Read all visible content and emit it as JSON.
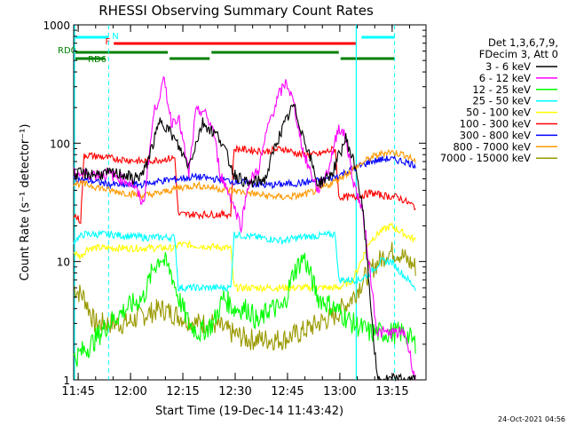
{
  "chart_data": {
    "type": "line",
    "title": "RHESSI Observing Summary Count Rates",
    "xlabel": "Start Time (19-Dec-14 11:43:42)",
    "ylabel": "Count Rate (s⁻¹ detector⁻¹)",
    "yscale": "log",
    "ylim": [
      1,
      1000
    ],
    "xlim_minutes": [
      0,
      101
    ],
    "y_ticks": [
      {
        "value": 1,
        "label": "1"
      },
      {
        "value": 10,
        "label": "10"
      },
      {
        "value": 100,
        "label": "100"
      },
      {
        "value": 1000,
        "label": "1000"
      }
    ],
    "x_ticks": [
      "11:45",
      "12:00",
      "12:15",
      "12:30",
      "12:45",
      "13:00",
      "13:15"
    ],
    "legend_position": "right",
    "legend_header": [
      "Det 1,3,6,7,9,",
      "FDecim 3, Att 0"
    ],
    "series": [
      {
        "name": "3 - 6 keV",
        "color": "#000000",
        "x": [
          10,
          14,
          17,
          20,
          25,
          28,
          33,
          37,
          42,
          46,
          50,
          55,
          58,
          63,
          67,
          70,
          74,
          78,
          81,
          83,
          87,
          91,
          95,
          98
        ],
        "values": [
          55,
          55,
          50,
          55,
          160,
          120,
          65,
          150,
          110,
          55,
          45,
          50,
          100,
          210,
          90,
          45,
          55,
          110,
          60,
          25,
          1,
          1,
          1,
          1
        ]
      },
      {
        "name": "6 - 12 keV",
        "color": "#ff00ff",
        "x": [
          10,
          14,
          17,
          20,
          23,
          26,
          28,
          30,
          33,
          35,
          37,
          40,
          42,
          45,
          48,
          50,
          53,
          56,
          59,
          61,
          63,
          66,
          70,
          73,
          76,
          78,
          80,
          83,
          87,
          90,
          95,
          98
        ],
        "values": [
          55,
          50,
          45,
          30,
          180,
          340,
          150,
          170,
          55,
          180,
          190,
          130,
          55,
          35,
          20,
          45,
          60,
          150,
          260,
          330,
          220,
          80,
          40,
          60,
          140,
          110,
          50,
          25,
          2.5,
          2.5,
          2.5,
          1
        ]
      },
      {
        "name": "12 - 25 keV",
        "color": "#00ff00",
        "x": [
          0,
          5,
          10,
          15,
          20,
          23,
          25,
          28,
          30,
          33,
          36,
          40,
          43,
          46,
          50,
          53,
          56,
          60,
          63,
          66,
          70,
          75,
          80,
          85,
          90,
          95,
          98
        ],
        "values": [
          1.5,
          2,
          3,
          4,
          5,
          9,
          11,
          8,
          5,
          3,
          2.5,
          3,
          5,
          4,
          4,
          3,
          4,
          4,
          8,
          11,
          5,
          4,
          3,
          2.5,
          2.5,
          2.5,
          2
        ]
      },
      {
        "name": "25 - 50 keV",
        "color": "#00ffff",
        "x": [
          0,
          3,
          10,
          20,
          29,
          30,
          45,
          46,
          60,
          65,
          75,
          76,
          82,
          85,
          88,
          91,
          94,
          98
        ],
        "values": [
          15,
          17,
          17,
          16,
          16,
          6,
          6,
          17,
          15,
          16,
          17,
          7,
          7,
          8,
          10,
          10,
          8,
          6
        ]
      },
      {
        "name": "50 - 100 keV",
        "color": "#ffff00",
        "x": [
          0,
          2,
          4,
          10,
          20,
          29,
          30,
          45,
          46,
          55,
          60,
          68,
          76,
          80,
          85,
          88,
          91,
          95,
          98
        ],
        "values": [
          12,
          11,
          13,
          13,
          13,
          13,
          14,
          13,
          6,
          6,
          6,
          6,
          6,
          7,
          15,
          18,
          20,
          17,
          15
        ]
      },
      {
        "name": "100 - 300 keV",
        "color": "#ff0000",
        "x": [
          0,
          2,
          3,
          10,
          20,
          29,
          30,
          45,
          46,
          55,
          60,
          65,
          70,
          75,
          76,
          78,
          81,
          85,
          89,
          93,
          97,
          98
        ],
        "values": [
          25,
          22,
          80,
          75,
          70,
          75,
          25,
          25,
          90,
          85,
          90,
          80,
          80,
          90,
          35,
          35,
          35,
          38,
          36,
          35,
          30,
          29
        ]
      },
      {
        "name": "300 - 800 keV",
        "color": "#0000ff",
        "x": [
          0,
          5,
          10,
          15,
          20,
          25,
          30,
          35,
          40,
          45,
          50,
          55,
          60,
          65,
          70,
          75,
          80,
          85,
          90,
          95,
          98
        ],
        "values": [
          50,
          48,
          45,
          44,
          45,
          48,
          50,
          52,
          50,
          48,
          46,
          44,
          45,
          46,
          48,
          52,
          60,
          70,
          74,
          70,
          65
        ]
      },
      {
        "name": "800 - 7000 keV",
        "color": "#ff9900",
        "x": [
          0,
          5,
          10,
          15,
          20,
          25,
          30,
          35,
          40,
          45,
          50,
          55,
          60,
          65,
          70,
          75,
          80,
          85,
          90,
          95,
          98
        ],
        "values": [
          46,
          44,
          40,
          38,
          36,
          38,
          42,
          44,
          42,
          40,
          38,
          36,
          35,
          36,
          40,
          48,
          60,
          75,
          85,
          80,
          70
        ]
      },
      {
        "name": "7000 - 15000 keV",
        "color": "#999900",
        "x": [
          0,
          3,
          6,
          10,
          15,
          20,
          25,
          30,
          35,
          40,
          45,
          50,
          55,
          60,
          65,
          70,
          75,
          80,
          83,
          86,
          90,
          93,
          96,
          98
        ],
        "values": [
          6,
          5,
          3,
          3,
          3,
          3.5,
          4,
          3.5,
          3,
          3,
          2.5,
          2.2,
          2.2,
          2.2,
          2.5,
          3,
          3.5,
          5,
          7,
          9,
          12,
          12,
          10,
          9
        ]
      }
    ],
    "vertical_lines": {
      "color": "#00ffff",
      "solid_minutes": [
        0,
        81
      ],
      "dashed_minutes": [
        10,
        92
      ]
    },
    "flag_bars": [
      {
        "label": "N",
        "color": "#00ffff",
        "level": 0,
        "segments": [
          [
            0,
            10
          ],
          [
            82,
            92
          ]
        ]
      },
      {
        "label": "F",
        "color": "#ff0000",
        "level": 1,
        "segments": [
          [
            11,
            81
          ]
        ]
      },
      {
        "label": "RD0",
        "color": "#008000",
        "level": 2,
        "segments": [
          [
            0,
            27
          ],
          [
            39,
            76
          ]
        ]
      },
      {
        "label": "RD6",
        "color": "#008000",
        "level": 3,
        "segments": [
          [
            0,
            9
          ],
          [
            27,
            39
          ],
          [
            76,
            92
          ]
        ]
      }
    ]
  },
  "footer": {
    "date_stamp": "24-Oct-2021 04:56"
  }
}
